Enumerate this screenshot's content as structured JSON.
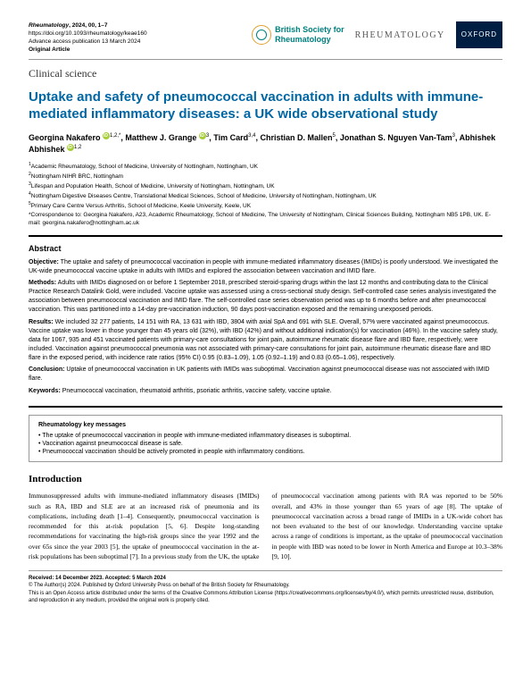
{
  "header": {
    "journal": "Rheumatology",
    "year_vol": ", 2024, 00, 1–7",
    "doi": "https://doi.org/10.1093/rheumatology/keae160",
    "advance": "Advance access publication 13 March 2024",
    "type": "Original Article",
    "logo_bsr_line1": "British Society for",
    "logo_bsr_line2": "Rheumatology",
    "logo_rheum": "RHEUMATOLOGY",
    "logo_oxford": "OXFORD"
  },
  "article": {
    "section": "Clinical science",
    "title": "Uptake and safety of pneumococcal vaccination in adults with immune-mediated inflammatory diseases: a UK wide observational study"
  },
  "authors": {
    "list": "Georgina Nakafero ⊙ 1,2,*, Matthew J. Grange ⊙ 3, Tim Card3,4, Christian D. Mallen5, Jonathan S. Nguyen Van-Tam3, Abhishek Abhishek ⊙ 1,2",
    "a1": "Academic Rheumatology, School of Medicine, University of Nottingham, Nottingham, UK",
    "a2": "Nottingham NIHR BRC, Nottingham",
    "a3": "Lifespan and Population Health, School of Medicine, University of Nottingham, Nottingham, UK",
    "a4": "Nottingham Digestive Diseases Centre, Translational Medical Sciences, School of Medicine, University of Nottingham, Nottingham, UK",
    "a5": "Primary Care Centre Versus Arthritis, School of Medicine, Keele University, Keele, UK",
    "corr": "*Correspondence to: Georgina Nakafero, A23, Academic Rheumatology, School of Medicine, The University of Nottingham, Clinical Sciences Building, Nottingham NB5 1PB, UK. E-mail: georgina.nakafero@nottingham.ac.uk"
  },
  "abstract": {
    "title": "Abstract",
    "objective_label": "Objective:",
    "objective": " The uptake and safety of pneumococcal vaccination in people with immune-mediated inflammatory diseases (IMIDs) is poorly understood. We investigated the UK-wide pneumococcal vaccine uptake in adults with IMIDs and explored the association between vaccination and IMID flare.",
    "methods_label": "Methods:",
    "methods": " Adults with IMIDs diagnosed on or before 1 September 2018, prescribed steroid-sparing drugs within the last 12 months and contributing data to the Clinical Practice Research Datalink Gold, were included. Vaccine uptake was assessed using a cross-sectional study design. Self-controlled case series analysis investigated the association between pneumococcal vaccination and IMID flare. The self-controlled case series observation period was up to 6 months before and after pneumococcal vaccination. This was partitioned into a 14-day pre-vaccination induction, 90 days post-vaccination exposed and the remaining unexposed periods.",
    "results_label": "Results:",
    "results": " We included 32 277 patients, 14 151 with RA, 13 631 with IBD, 3804 with axial SpA and 691 with SLE. Overall, 57% were vaccinated against pneumococcus. Vaccine uptake was lower in those younger than 45 years old (32%), with IBD (42%) and without additional indication(s) for vaccination (46%). In the vaccine safety study, data for 1067, 935 and 451 vaccinated patients with primary-care consultations for joint pain, autoimmune rheumatic disease flare and IBD flare, respectively, were included. Vaccination against pneumococcal pneumonia was not associated with primary-care consultations for joint pain, autoimmune rheumatic disease flare and IBD flare in the exposed period, with incidence rate ratios (95% CI) 0.95 (0.83–1.09), 1.05 (0.92–1.19) and 0.83 (0.65–1.06), respectively.",
    "conclusion_label": "Conclusion:",
    "conclusion": " Uptake of pneumococcal vaccination in UK patients with IMIDs was suboptimal. Vaccination against pneumococcal disease was not associated with IMID flare.",
    "keywords_label": "Keywords:",
    "keywords": " Pneumococcal vaccination, rheumatoid arthritis, psoriatic arthritis, vaccine safety, vaccine uptake."
  },
  "keymessages": {
    "title": "Rheumatology key messages",
    "m1": "The uptake of pneumococcal vaccination in people with immune-mediated inflammatory diseases is suboptimal.",
    "m2": "Vaccination against pneumococcal disease is safe.",
    "m3": "Pneumococcal vaccination should be actively promoted in people with inflammatory conditions."
  },
  "intro": {
    "title": "Introduction",
    "col1": "Immunosuppressed adults with immune-mediated inflammatory diseases (IMIDs) such as RA, IBD and SLE are at an increased risk of pneumonia and its complications, including death [1–4]. Consequently, pneumococcal vaccination is recommended for this at-risk population [5, 6]. Despite long-standing recommendations for vaccinating the high-risk groups since the year 1992 and the over 65s since the year 2003 [5], the uptake of pneumococcal vaccination in the at-risk populations has been",
    "col2": "suboptimal [7]. In a previous study from the UK, the uptake of pneumococcal vaccination among patients with RA was reported to be 50% overall, and 43% in those younger than 65 years of age [8]. The uptake of pneumococcal vaccination across a broad range of IMIDs in a UK-wide cohort has not been evaluated to the best of our knowledge. Understanding vaccine uptake across a range of conditions is important, as the uptake of pneumococcal vaccination in people with IBD was noted to be lower in North America and Europe at 10.3–38% [9, 10]."
  },
  "footer": {
    "received": "Received: 14 December 2023. Accepted: 5 March 2024",
    "copyright": "© The Author(s) 2024. Published by Oxford University Press on behalf of the British Society for Rheumatology.",
    "license": "This is an Open Access article distributed under the terms of the Creative Commons Attribution License (https://creativecommons.org/licenses/by/4.0/), which permits unrestricted reuse, distribution, and reproduction in any medium, provided the original work is properly cited."
  }
}
